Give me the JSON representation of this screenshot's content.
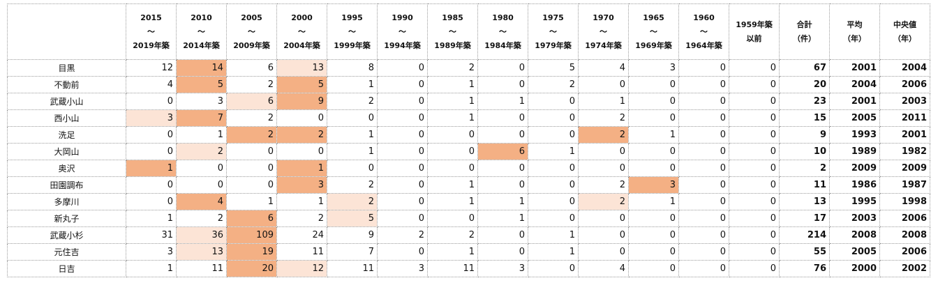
{
  "table": {
    "shading": {
      "dark": "#f4b084",
      "light": "#fce4d6"
    },
    "columns": [
      [
        "2015",
        "～",
        "2019年築"
      ],
      [
        "2010",
        "～",
        "2014年築"
      ],
      [
        "2005",
        "～",
        "2009年築"
      ],
      [
        "2000",
        "～",
        "2004年築"
      ],
      [
        "1995",
        "～",
        "1999年築"
      ],
      [
        "1990",
        "～",
        "1994年築"
      ],
      [
        "1985",
        "～",
        "1989年築"
      ],
      [
        "1980",
        "～",
        "1984年築"
      ],
      [
        "1975",
        "～",
        "1979年築"
      ],
      [
        "1970",
        "～",
        "1974年築"
      ],
      [
        "1965",
        "～",
        "1969年築"
      ],
      [
        "1960",
        "～",
        "1964年築"
      ],
      [
        "1959年築",
        "以前"
      ],
      [
        "合計",
        "（件）"
      ],
      [
        "平均",
        "（年）"
      ],
      [
        "中央値",
        "（年）"
      ]
    ],
    "rows": [
      {
        "name": "目黒",
        "values": [
          12,
          14,
          6,
          13,
          8,
          0,
          2,
          0,
          5,
          4,
          3,
          0,
          0,
          67,
          2001,
          2004
        ],
        "dark": [
          1
        ],
        "light": [
          3
        ]
      },
      {
        "name": "不動前",
        "values": [
          4,
          5,
          2,
          5,
          1,
          0,
          1,
          0,
          2,
          0,
          0,
          0,
          0,
          20,
          2004,
          2006
        ],
        "dark": [
          1,
          3
        ],
        "light": []
      },
      {
        "name": "武蔵小山",
        "values": [
          0,
          3,
          6,
          9,
          2,
          0,
          1,
          1,
          0,
          1,
          0,
          0,
          0,
          23,
          2001,
          2003
        ],
        "dark": [
          3
        ],
        "light": [
          2
        ]
      },
      {
        "name": "西小山",
        "values": [
          3,
          7,
          2,
          0,
          0,
          0,
          1,
          0,
          0,
          2,
          0,
          0,
          0,
          15,
          2005,
          2011
        ],
        "dark": [
          1
        ],
        "light": [
          0
        ]
      },
      {
        "name": "洗足",
        "values": [
          0,
          1,
          2,
          2,
          1,
          0,
          0,
          0,
          0,
          2,
          1,
          0,
          0,
          9,
          1993,
          2001
        ],
        "dark": [
          2,
          3,
          9
        ],
        "light": []
      },
      {
        "name": "大岡山",
        "values": [
          0,
          2,
          0,
          0,
          1,
          0,
          0,
          6,
          1,
          0,
          0,
          0,
          0,
          10,
          1989,
          1982
        ],
        "dark": [
          7
        ],
        "light": [
          1
        ]
      },
      {
        "name": "奥沢",
        "values": [
          1,
          0,
          0,
          1,
          0,
          0,
          0,
          0,
          0,
          0,
          0,
          0,
          0,
          2,
          2009,
          2009
        ],
        "dark": [
          0,
          3
        ],
        "light": []
      },
      {
        "name": "田園調布",
        "values": [
          0,
          0,
          0,
          3,
          2,
          0,
          1,
          0,
          0,
          2,
          3,
          0,
          0,
          11,
          1986,
          1987
        ],
        "dark": [
          3,
          10
        ],
        "light": []
      },
      {
        "name": "多摩川",
        "values": [
          0,
          4,
          1,
          1,
          2,
          0,
          1,
          1,
          0,
          2,
          1,
          0,
          0,
          13,
          1995,
          1998
        ],
        "dark": [
          1
        ],
        "light": [
          4,
          9
        ]
      },
      {
        "name": "新丸子",
        "values": [
          1,
          2,
          6,
          2,
          5,
          0,
          0,
          1,
          0,
          0,
          0,
          0,
          0,
          17,
          2003,
          2006
        ],
        "dark": [
          2
        ],
        "light": [
          4
        ]
      },
      {
        "name": "武蔵小杉",
        "values": [
          31,
          36,
          109,
          24,
          9,
          2,
          2,
          0,
          1,
          0,
          0,
          0,
          0,
          214,
          2008,
          2008
        ],
        "dark": [
          2
        ],
        "light": [
          1
        ]
      },
      {
        "name": "元住吉",
        "values": [
          3,
          13,
          19,
          11,
          7,
          0,
          1,
          0,
          1,
          0,
          0,
          0,
          0,
          55,
          2005,
          2006
        ],
        "dark": [
          2
        ],
        "light": [
          1
        ]
      },
      {
        "name": "日吉",
        "values": [
          1,
          11,
          20,
          12,
          11,
          3,
          11,
          3,
          0,
          4,
          0,
          0,
          0,
          76,
          2000,
          2002
        ],
        "dark": [
          2
        ],
        "light": [
          3
        ]
      }
    ]
  }
}
